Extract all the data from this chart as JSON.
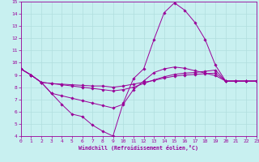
{
  "xlabel": "Windchill (Refroidissement éolien,°C)",
  "xlim": [
    0,
    23
  ],
  "ylim": [
    4,
    15
  ],
  "xticks": [
    0,
    1,
    2,
    3,
    4,
    5,
    6,
    7,
    8,
    9,
    10,
    11,
    12,
    13,
    14,
    15,
    16,
    17,
    18,
    19,
    20,
    21,
    22,
    23
  ],
  "yticks": [
    4,
    5,
    6,
    7,
    8,
    9,
    10,
    11,
    12,
    13,
    14,
    15
  ],
  "bg_color": "#c8f0f0",
  "line_color": "#990099",
  "grid_color": "#b0dede",
  "series": [
    {
      "x": [
        0,
        1,
        2,
        3,
        4,
        5,
        6,
        7,
        8,
        9,
        10,
        11,
        12,
        13,
        14,
        15,
        16,
        17,
        18,
        19,
        20,
        21,
        22,
        23
      ],
      "y": [
        9.5,
        9.0,
        8.4,
        7.5,
        6.6,
        5.8,
        5.6,
        4.9,
        4.4,
        4.0,
        6.7,
        8.7,
        9.5,
        11.9,
        14.1,
        14.9,
        14.3,
        13.3,
        11.9,
        9.8,
        8.5,
        8.5,
        8.5,
        8.5
      ]
    },
    {
      "x": [
        0,
        1,
        2,
        3,
        4,
        5,
        6,
        7,
        8,
        9,
        10,
        11,
        12,
        13,
        14,
        15,
        16,
        17,
        18,
        19,
        20,
        21,
        22,
        23
      ],
      "y": [
        9.5,
        9.0,
        8.4,
        8.3,
        8.25,
        8.2,
        8.15,
        8.1,
        8.1,
        8.0,
        8.1,
        8.25,
        8.4,
        8.55,
        8.75,
        8.9,
        9.0,
        9.05,
        9.1,
        9.15,
        8.5,
        8.5,
        8.5,
        8.5
      ]
    },
    {
      "x": [
        0,
        1,
        2,
        3,
        4,
        5,
        6,
        7,
        8,
        9,
        10,
        11,
        12,
        13,
        14,
        15,
        16,
        17,
        18,
        19,
        20,
        21,
        22,
        23
      ],
      "y": [
        9.5,
        9.0,
        8.4,
        8.3,
        8.2,
        8.1,
        8.0,
        7.9,
        7.8,
        7.7,
        7.8,
        8.0,
        8.3,
        8.6,
        8.85,
        9.05,
        9.15,
        9.2,
        9.3,
        9.4,
        8.5,
        8.5,
        8.5,
        8.5
      ]
    },
    {
      "x": [
        0,
        1,
        2,
        3,
        4,
        5,
        6,
        7,
        8,
        9,
        10,
        11,
        12,
        13,
        14,
        15,
        16,
        17,
        18,
        19,
        20,
        21,
        22,
        23
      ],
      "y": [
        9.5,
        9.0,
        8.4,
        7.5,
        7.3,
        7.1,
        6.9,
        6.7,
        6.5,
        6.3,
        6.6,
        7.8,
        8.5,
        9.2,
        9.5,
        9.65,
        9.55,
        9.35,
        9.15,
        8.95,
        8.5,
        8.5,
        8.5,
        8.5
      ]
    }
  ]
}
